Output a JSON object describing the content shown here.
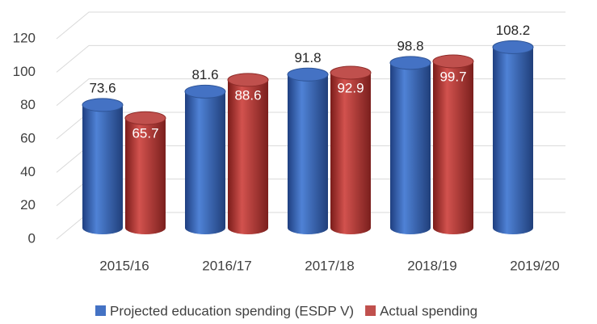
{
  "chart_data": {
    "type": "bar",
    "categories": [
      "2015/16",
      "2016/17",
      "2017/18",
      "2018/19",
      "2019/20"
    ],
    "series": [
      {
        "name": "Projected education spending (ESDP V)",
        "color": "#4472c4",
        "values": [
          73.6,
          81.6,
          91.8,
          98.8,
          108.2
        ]
      },
      {
        "name": "Actual spending",
        "color": "#c0504d",
        "values": [
          65.7,
          88.6,
          92.9,
          99.7,
          null
        ]
      }
    ],
    "ylim": [
      0,
      120
    ],
    "yticks": [
      0,
      20,
      40,
      60,
      80,
      100,
      120
    ],
    "grid": true,
    "legend": "bottom"
  }
}
